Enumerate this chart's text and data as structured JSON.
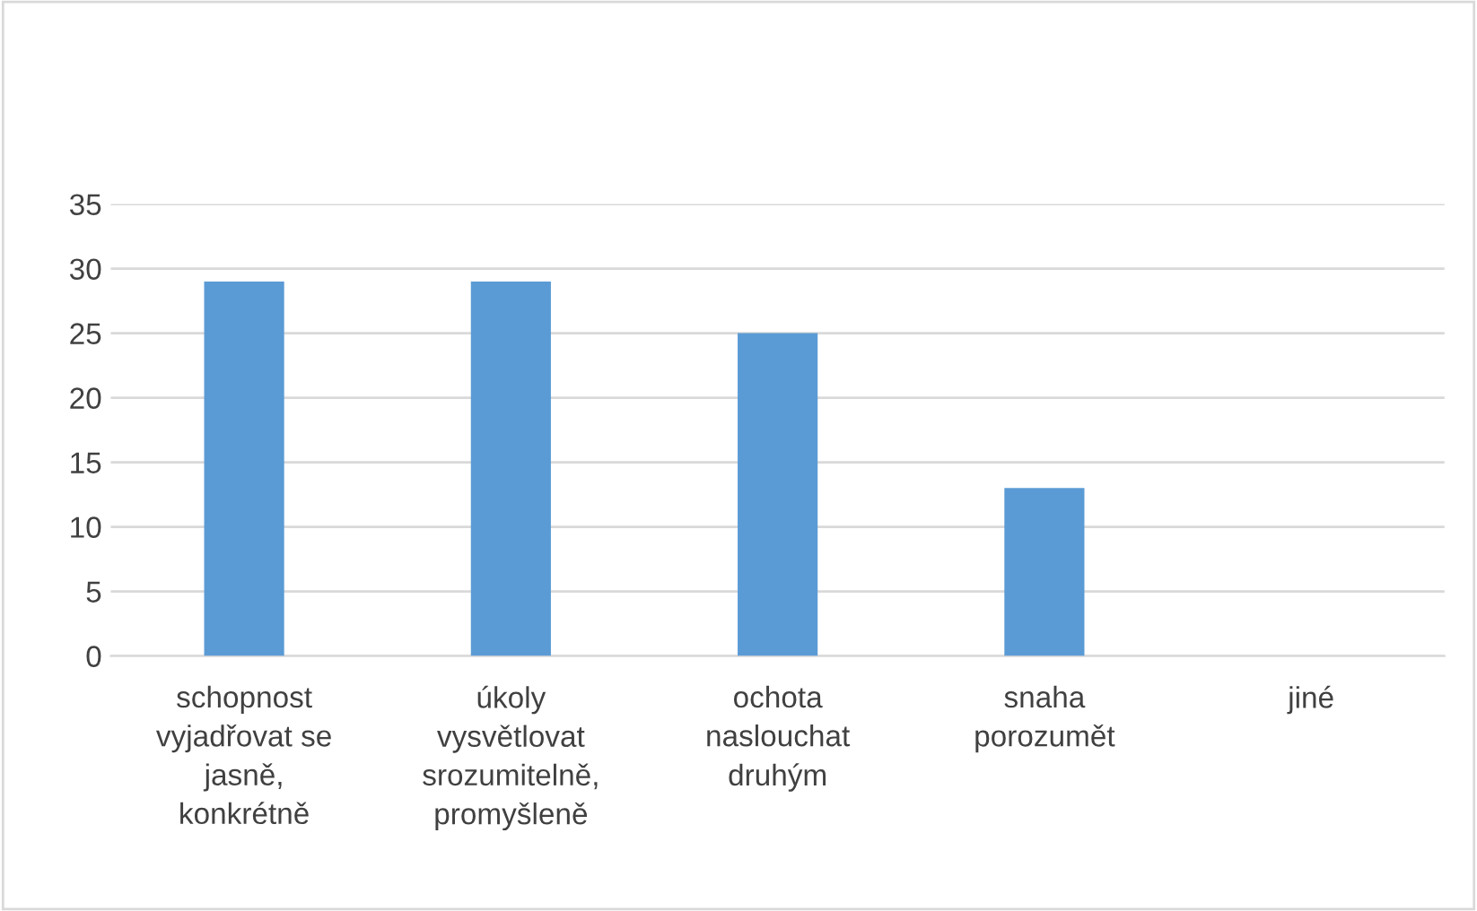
{
  "chart_data": {
    "type": "bar",
    "categories": [
      "schopnost\nvyjadřovat se\njasně,\nkonkrétně",
      "úkoly\nvysvětlovat\nsrozumitelně,\npromyšleně",
      "ochota\nnaslouchat\ndruhým",
      "snaha\nporozumět",
      "jiné"
    ],
    "values": [
      29,
      29,
      25,
      13,
      0
    ],
    "color": "#5b9bd5",
    "ylim": [
      0,
      35
    ],
    "yticks": [
      0,
      5,
      10,
      15,
      20,
      25,
      30,
      35
    ],
    "grid": "y"
  }
}
